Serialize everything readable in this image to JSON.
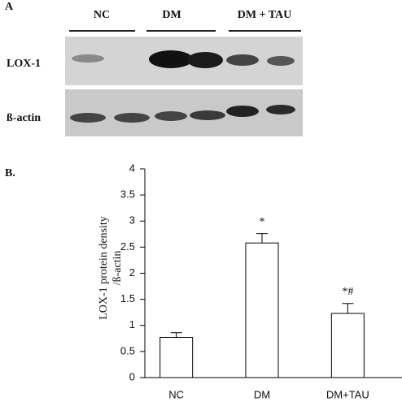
{
  "panel_a": {
    "label": "A",
    "groups": [
      "NC",
      "DM",
      "DM + TAU"
    ],
    "rows": [
      "LOX-1",
      "ß-actin"
    ]
  },
  "chart_data": {
    "type": "bar",
    "label": "B.",
    "ylabel": [
      "LOX-1 protein density",
      "/ß-actin"
    ],
    "categories": [
      "NC",
      "DM",
      "DM+TAU"
    ],
    "values": [
      0.77,
      2.58,
      1.23
    ],
    "errors": [
      0.09,
      0.18,
      0.19
    ],
    "annotations": [
      null,
      "*",
      "*#"
    ],
    "color": "#ffffff",
    "ylim": [
      0,
      4
    ],
    "yticks": [
      0,
      0.5,
      1,
      1.5,
      2,
      2.5,
      3,
      3.5,
      4
    ]
  }
}
